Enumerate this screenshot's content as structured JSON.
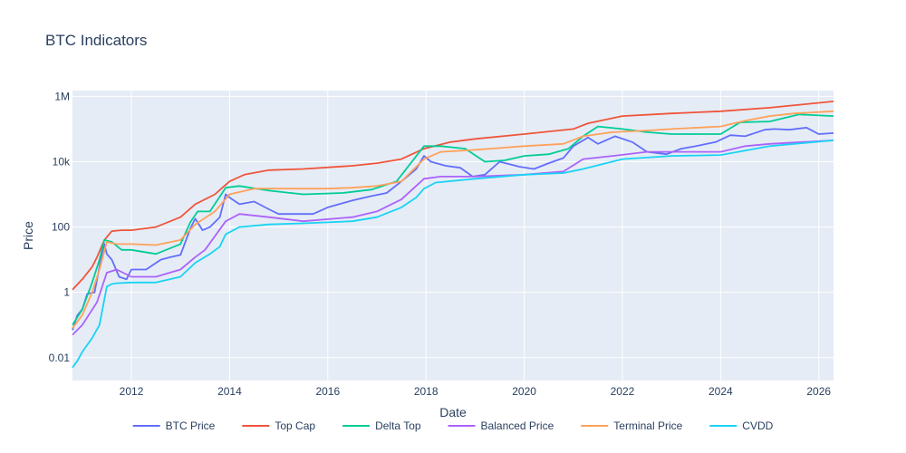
{
  "chart_data": {
    "type": "line",
    "title": "BTC Indicators",
    "xlabel": "Date",
    "ylabel": "Price",
    "y_scale": "log",
    "xlim": [
      2010.8,
      2026.3
    ],
    "ylim": [
      0.002,
      1500000
    ],
    "x_ticks": [
      2012,
      2014,
      2016,
      2018,
      2020,
      2022,
      2024,
      2026
    ],
    "x_tick_labels": [
      "2012",
      "2014",
      "2016",
      "2018",
      "2020",
      "2022",
      "2024",
      "2026"
    ],
    "y_ticks": [
      0.01,
      1,
      100,
      10000,
      1000000
    ],
    "y_tick_labels": [
      "0.01",
      "1",
      "100",
      "10k",
      "1M"
    ],
    "grid": true,
    "legend_position": "bottom",
    "series": [
      {
        "name": "BTC Price",
        "color": "#636efa",
        "x": [
          2010.8,
          2010.9,
          2011.0,
          2011.1,
          2011.25,
          2011.4,
          2011.45,
          2011.5,
          2011.6,
          2011.75,
          2011.9,
          2012.0,
          2012.3,
          2012.6,
          2012.8,
          2013.0,
          2013.2,
          2013.3,
          2013.45,
          2013.6,
          2013.8,
          2013.92,
          2014.0,
          2014.2,
          2014.5,
          2014.8,
          2015.0,
          2015.3,
          2015.7,
          2016.0,
          2016.5,
          2016.9,
          2017.2,
          2017.5,
          2017.8,
          2017.96,
          2018.1,
          2018.4,
          2018.7,
          2018.95,
          2019.2,
          2019.5,
          2019.9,
          2020.2,
          2020.5,
          2020.8,
          2021.0,
          2021.3,
          2021.5,
          2021.85,
          2022.2,
          2022.5,
          2022.9,
          2023.2,
          2023.5,
          2023.9,
          2024.2,
          2024.5,
          2024.9,
          2025.1,
          2025.4,
          2025.75,
          2026.0,
          2026.3
        ],
        "values": [
          0.07,
          0.2,
          0.3,
          0.9,
          1.0,
          15,
          30,
          15,
          10,
          3,
          2.5,
          5,
          5,
          10,
          12,
          14,
          90,
          180,
          80,
          100,
          200,
          1000,
          800,
          500,
          600,
          350,
          250,
          250,
          250,
          400,
          650,
          900,
          1100,
          2500,
          6000,
          15000,
          10000,
          7500,
          6500,
          3500,
          4000,
          10000,
          7000,
          6000,
          9000,
          13000,
          30000,
          55000,
          35000,
          60000,
          40000,
          20000,
          17000,
          25000,
          30000,
          40000,
          65000,
          60000,
          95000,
          100000,
          95000,
          110000,
          70000,
          75000
        ]
      },
      {
        "name": "Top Cap",
        "color": "#ef553b",
        "x": [
          2010.8,
          2011.0,
          2011.2,
          2011.3,
          2011.45,
          2011.6,
          2011.8,
          2012.0,
          2012.5,
          2013.0,
          2013.3,
          2013.7,
          2014.0,
          2014.3,
          2014.8,
          2015.5,
          2016.5,
          2017.0,
          2017.5,
          2017.96,
          2018.5,
          2019.0,
          2020.0,
          2021.0,
          2021.3,
          2022.0,
          2023.0,
          2024.0,
          2025.0,
          2026.3
        ],
        "values": [
          1.2,
          2.5,
          6,
          12,
          40,
          75,
          80,
          80,
          100,
          200,
          500,
          1000,
          2500,
          4000,
          5500,
          6000,
          7500,
          9000,
          12000,
          25000,
          40000,
          50000,
          70000,
          100000,
          150000,
          250000,
          300000,
          350000,
          450000,
          700000
        ]
      },
      {
        "name": "Delta Top",
        "color": "#00cc96",
        "x": [
          2010.8,
          2011.0,
          2011.2,
          2011.35,
          2011.45,
          2011.6,
          2011.8,
          2012.0,
          2012.5,
          2013.0,
          2013.2,
          2013.35,
          2013.6,
          2013.92,
          2014.2,
          2014.8,
          2015.5,
          2016.3,
          2016.9,
          2017.4,
          2017.96,
          2018.3,
          2018.8,
          2019.2,
          2019.6,
          2020.0,
          2020.5,
          2020.9,
          2021.2,
          2021.5,
          2022.0,
          2022.5,
          2023.0,
          2024.0,
          2024.4,
          2025.0,
          2025.6,
          2026.3
        ],
        "values": [
          0.1,
          0.3,
          2,
          10,
          40,
          35,
          20,
          20,
          15,
          30,
          140,
          300,
          300,
          1600,
          1800,
          1300,
          1000,
          1100,
          1400,
          2500,
          30000,
          30000,
          25000,
          10000,
          11000,
          15000,
          17000,
          25000,
          60000,
          120000,
          100000,
          80000,
          70000,
          70000,
          160000,
          170000,
          280000,
          250000
        ]
      },
      {
        "name": "Balanced Price",
        "color": "#ab63fa",
        "x": [
          2010.8,
          2011.0,
          2011.3,
          2011.5,
          2011.7,
          2012.0,
          2012.5,
          2013.0,
          2013.3,
          2013.5,
          2013.92,
          2014.2,
          2014.8,
          2015.5,
          2016.5,
          2017.0,
          2017.5,
          2017.96,
          2018.3,
          2019.0,
          2020.0,
          2020.8,
          2021.2,
          2021.8,
          2022.5,
          2023.0,
          2024.0,
          2024.5,
          2025.0,
          2026.3
        ],
        "values": [
          0.05,
          0.1,
          0.5,
          4,
          5,
          3,
          3,
          5,
          12,
          20,
          150,
          250,
          200,
          150,
          200,
          300,
          700,
          3000,
          3500,
          3500,
          4000,
          5000,
          12000,
          15000,
          20000,
          20000,
          20000,
          30000,
          35000,
          45000
        ]
      },
      {
        "name": "Terminal Price",
        "color": "#ffa15a",
        "x": [
          2010.8,
          2011.0,
          2011.2,
          2011.35,
          2011.5,
          2011.7,
          2012.0,
          2012.5,
          2013.0,
          2013.3,
          2013.7,
          2014.0,
          2014.5,
          2015.0,
          2015.5,
          2016.0,
          2016.5,
          2017.0,
          2017.5,
          2017.96,
          2018.3,
          2019.0,
          2020.0,
          2020.8,
          2021.2,
          2021.8,
          2022.5,
          2023.0,
          2024.0,
          2024.5,
          2025.0,
          2025.5,
          2026.3
        ],
        "values": [
          0.08,
          0.2,
          1,
          5,
          35,
          30,
          30,
          28,
          40,
          120,
          300,
          1000,
          1500,
          1500,
          1500,
          1500,
          1600,
          1800,
          2500,
          12000,
          20000,
          23000,
          30000,
          35000,
          60000,
          80000,
          90000,
          100000,
          120000,
          180000,
          250000,
          300000,
          350000
        ]
      },
      {
        "name": "CVDD",
        "color": "#19d3f3",
        "x": [
          2010.8,
          2010.9,
          2011.0,
          2011.2,
          2011.35,
          2011.5,
          2011.6,
          2011.7,
          2012.0,
          2012.5,
          2013.0,
          2013.3,
          2013.6,
          2013.8,
          2013.92,
          2014.2,
          2014.8,
          2015.5,
          2016.5,
          2017.0,
          2017.5,
          2017.8,
          2017.96,
          2018.2,
          2019.0,
          2020.0,
          2020.8,
          2021.2,
          2022.0,
          2023.0,
          2024.0,
          2025.0,
          2026.3
        ],
        "values": [
          0.005,
          0.008,
          0.015,
          0.04,
          0.1,
          1.5,
          1.8,
          1.9,
          2,
          2,
          3,
          8,
          15,
          25,
          60,
          100,
          120,
          130,
          150,
          200,
          400,
          800,
          1500,
          2300,
          3000,
          4000,
          4500,
          6000,
          12000,
          15000,
          16000,
          30000,
          45000
        ]
      }
    ]
  }
}
